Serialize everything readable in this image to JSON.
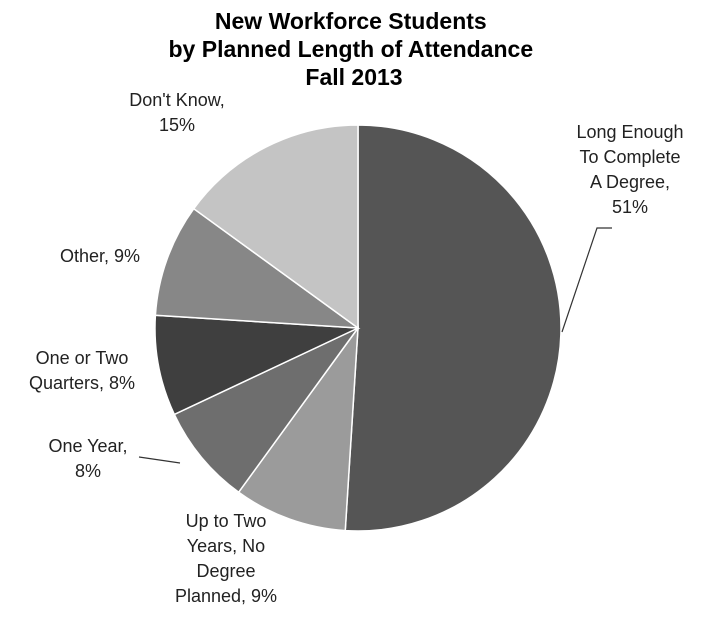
{
  "chart_data": {
    "type": "pie",
    "title": [
      "New Workforce Students",
      "by Planned Length of Attendance",
      "Fall 2013"
    ],
    "legend": "none",
    "start": "12 o'clock",
    "direction": "clockwise",
    "slices": [
      {
        "label": [
          "Long Enough",
          "To Complete",
          "A Degree,",
          "51%"
        ],
        "value": 51,
        "color": "#555555"
      },
      {
        "label": [
          "Up to Two",
          "Years, No",
          "Degree",
          "Planned, 9%"
        ],
        "value": 9,
        "color": "#9b9b9b"
      },
      {
        "label": [
          "One Year,",
          "8%"
        ],
        "value": 8,
        "color": "#6e6e6e"
      },
      {
        "label": [
          "One or Two",
          "Quarters, 8%"
        ],
        "value": 8,
        "color": "#3f3f3f"
      },
      {
        "label": [
          "Other, 9%"
        ],
        "value": 9,
        "color": "#878787"
      },
      {
        "label": [
          "Don't Know,",
          "15%"
        ],
        "value": 15,
        "color": "#c4c4c4"
      }
    ]
  }
}
